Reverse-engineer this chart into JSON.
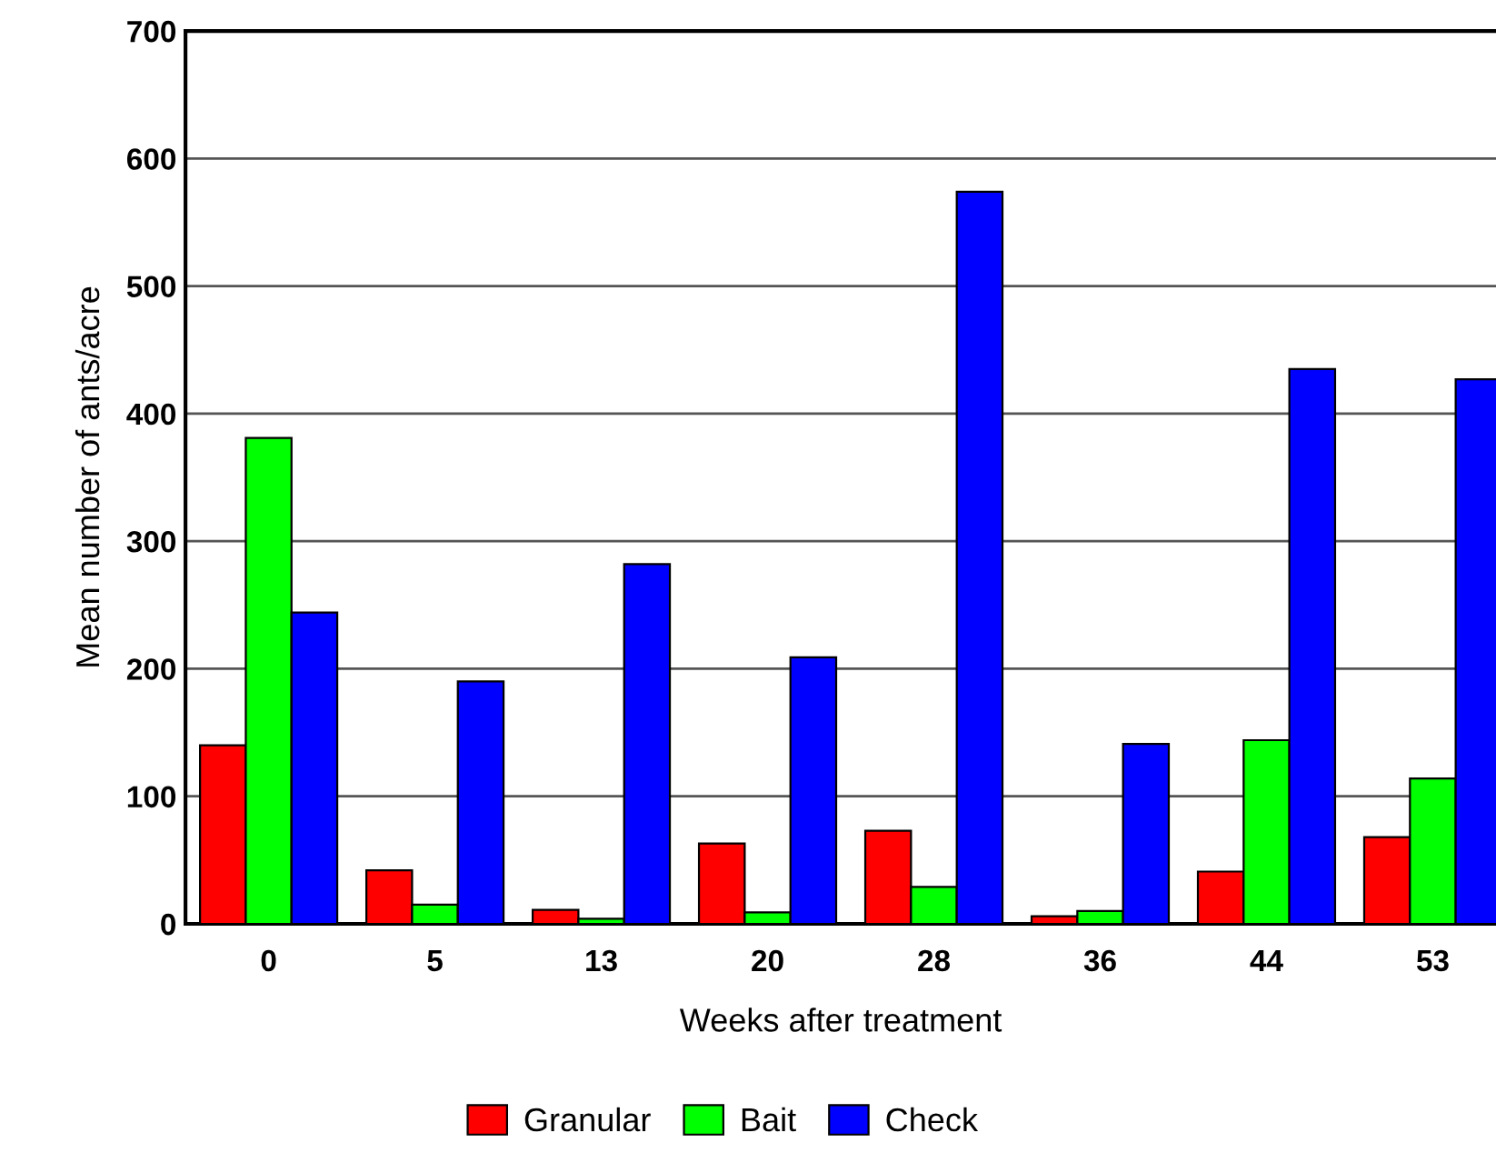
{
  "chart_data": {
    "type": "bar",
    "xlabel": "Weeks after treatment",
    "ylabel": "Mean number of ants/acre",
    "categories": [
      "0",
      "5",
      "13",
      "20",
      "28",
      "36",
      "44",
      "53"
    ],
    "series": [
      {
        "name": "Granular",
        "color": "#ff0000",
        "values": [
          140,
          42,
          11,
          63,
          73,
          6,
          41,
          68
        ]
      },
      {
        "name": "Bait",
        "color": "#00ff00",
        "values": [
          381,
          15,
          4,
          9,
          29,
          10,
          144,
          114
        ]
      },
      {
        "name": "Check",
        "color": "#0000ff",
        "values": [
          244,
          190,
          282,
          209,
          574,
          141,
          435,
          427
        ]
      }
    ],
    "ylim": [
      0,
      700
    ],
    "yticks": [
      0,
      100,
      200,
      300,
      400,
      500,
      600,
      700
    ],
    "grid": "y",
    "legend": "bottom"
  }
}
